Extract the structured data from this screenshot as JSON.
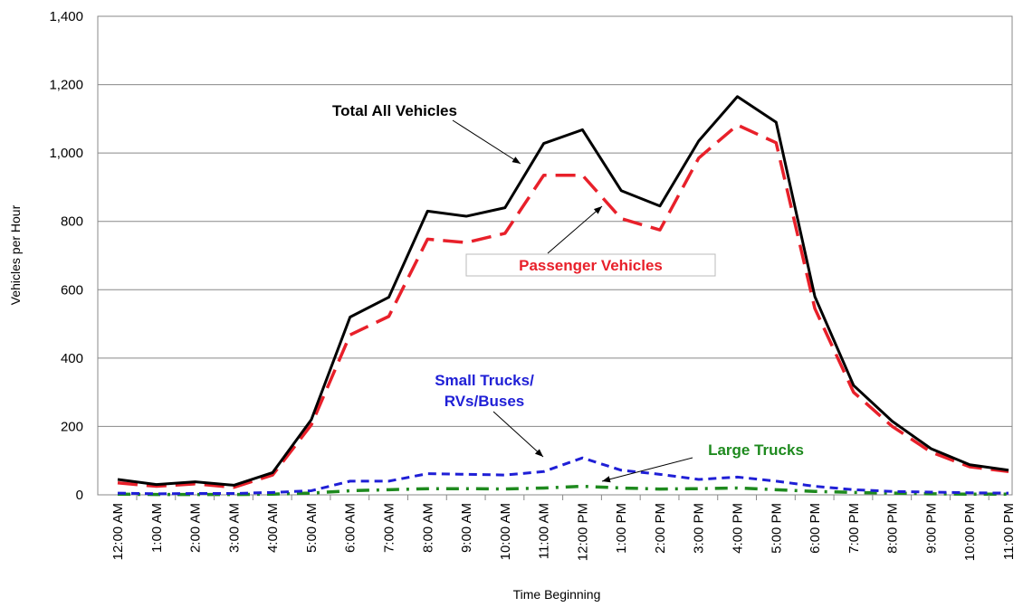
{
  "chart_data": {
    "type": "line",
    "y_label": "Vehicles per Hour",
    "x_label": "Time Beginning",
    "categories": [
      "12:00 AM",
      "1:00 AM",
      "2:00 AM",
      "3:00 AM",
      "4:00 AM",
      "5:00 AM",
      "6:00 AM",
      "7:00 AM",
      "8:00 AM",
      "9:00 AM",
      "10:00 AM",
      "11:00 AM",
      "12:00 PM",
      "1:00 PM",
      "2:00 PM",
      "3:00 PM",
      "4:00 PM",
      "5:00 PM",
      "6:00 PM",
      "7:00 PM",
      "8:00 PM",
      "9:00 PM",
      "10:00 PM",
      "11:00 PM"
    ],
    "series": [
      {
        "name": "Total All Vehicles",
        "color": "#000000",
        "values": [
          45,
          30,
          38,
          28,
          65,
          220,
          520,
          578,
          830,
          815,
          840,
          1028,
          1068,
          890,
          845,
          1035,
          1165,
          1090,
          580,
          320,
          215,
          135,
          88,
          72
        ]
      },
      {
        "name": "Passenger Vehicles",
        "color": "#e8202a",
        "values": [
          35,
          25,
          32,
          22,
          58,
          205,
          468,
          522,
          748,
          738,
          765,
          935,
          935,
          808,
          775,
          985,
          1082,
          1030,
          545,
          300,
          200,
          125,
          82,
          68
        ]
      },
      {
        "name": "Small Trucks/ RVs/Buses",
        "color": "#1f1fd6",
        "values": [
          5,
          3,
          4,
          4,
          7,
          12,
          40,
          40,
          62,
          60,
          58,
          68,
          108,
          72,
          60,
          45,
          52,
          40,
          25,
          15,
          10,
          8,
          6,
          5
        ]
      },
      {
        "name": "Large Trucks",
        "color": "#1e8a1e",
        "values": [
          2,
          1,
          1,
          1,
          2,
          5,
          12,
          15,
          18,
          18,
          17,
          20,
          25,
          20,
          17,
          18,
          20,
          15,
          10,
          7,
          5,
          3,
          2,
          2
        ]
      }
    ],
    "ylim": [
      0,
      1400
    ],
    "yticks": [
      0,
      200,
      400,
      600,
      800,
      {
        "value": 1000,
        "label": "1,000"
      },
      {
        "value": 1200,
        "label": "1,200"
      },
      {
        "value": 1400,
        "label": "1,400"
      }
    ],
    "grid": true
  }
}
